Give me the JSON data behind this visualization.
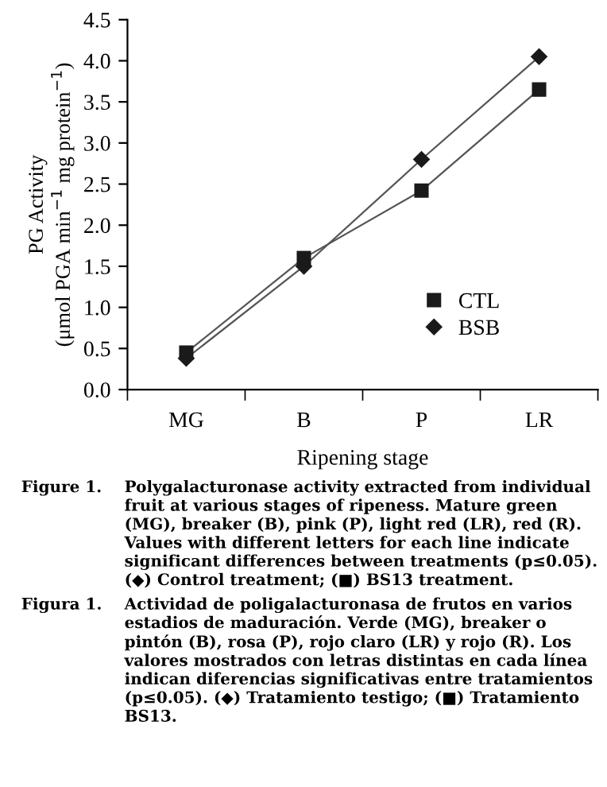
{
  "chart_data": {
    "type": "line",
    "xlabel": "Ripening stage",
    "ylabel": "PG Activity\n(μmol PGA min$^{−1}$ mg protein$^{−1}$)",
    "categories": [
      "MG",
      "B",
      "P",
      "LR"
    ],
    "series": [
      {
        "name": "CTL",
        "color": "#1a1a1a",
        "marker": "square",
        "values": [
          0.45,
          1.6,
          2.42,
          3.65
        ]
      },
      {
        "name": "BSB",
        "color": "#1a1a1a",
        "marker": "diamond",
        "values": [
          0.38,
          1.5,
          2.8,
          4.05
        ]
      }
    ],
    "ylim": [
      0,
      4.5
    ],
    "yticks": [
      {
        "value": 0,
        "label": "0.0"
      },
      0.5,
      {
        "value": 1,
        "label": "1.0"
      },
      1.5,
      {
        "value": 2,
        "label": "2.0"
      },
      2.5,
      {
        "value": 3,
        "label": "3.0"
      },
      3.5,
      {
        "value": 4,
        "label": "4.0"
      },
      4.5
    ],
    "grid": false,
    "legend": "bottom right",
    "line_style": "solid",
    "annotations": [
      "Figure 1. Polygalacturonase activity extracted from individual fruit at various stages of ripeness. Mature green (MG), breaker (B), pink (P), light red (LR), red (R). Values with different letters for each line indicate significant differences between treatments (p≤0.05). (◆) Control treatment; (■) BS13 treatment.",
      "Figura 1. Actividad de poligalacturonasa de frutos en varios estadios de maduración. Verde (MG), breaker o pintón (B), rosa (P), rojo claro (LR) y rojo (R). Los valores mostrados con letras distintas en cada línea indican diferencias significativas entre tratamientos (p≤0.05). (◆) Tratamiento testigo; (■) Tratamiento BS13."
    ]
  }
}
